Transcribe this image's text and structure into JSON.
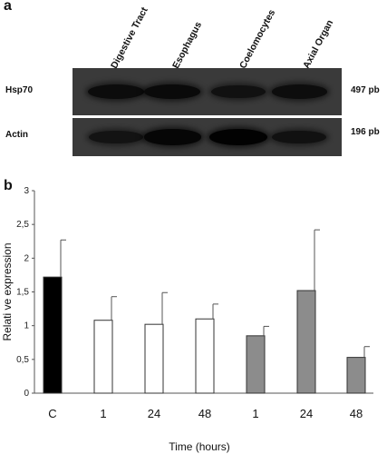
{
  "panel_a": {
    "label": "a",
    "lanes": [
      "Digestive Tract",
      "Esophagus",
      "Coelomocytes",
      "Axial Organ"
    ],
    "rows": [
      {
        "name": "Hsp70",
        "size": "497 pb",
        "band_intensity": [
          0.75,
          0.8,
          0.6,
          0.7
        ]
      },
      {
        "name": "Actin",
        "size": "196 pb",
        "band_intensity": [
          0.55,
          0.9,
          1.0,
          0.6
        ]
      }
    ]
  },
  "chart_data": {
    "type": "bar",
    "panel_label": "b",
    "categories": [
      "C",
      "1",
      "24",
      "48",
      "1",
      "24",
      "48"
    ],
    "values": [
      1.72,
      1.08,
      1.02,
      1.1,
      0.85,
      1.52,
      0.53
    ],
    "errors": [
      0.55,
      0.35,
      0.47,
      0.22,
      0.14,
      0.9,
      0.16
    ],
    "fill_colors": [
      "#000000",
      "#ffffff",
      "#ffffff",
      "#ffffff",
      "#8c8c8c",
      "#8c8c8c",
      "#8c8c8c"
    ],
    "xlabel": "Time (hours)",
    "ylabel": "Relati ve expression",
    "ylim": [
      0,
      3
    ],
    "yticks": [
      "0",
      "0,5",
      "1",
      "1,5",
      "2",
      "2,5",
      "3"
    ],
    "grid": false
  }
}
